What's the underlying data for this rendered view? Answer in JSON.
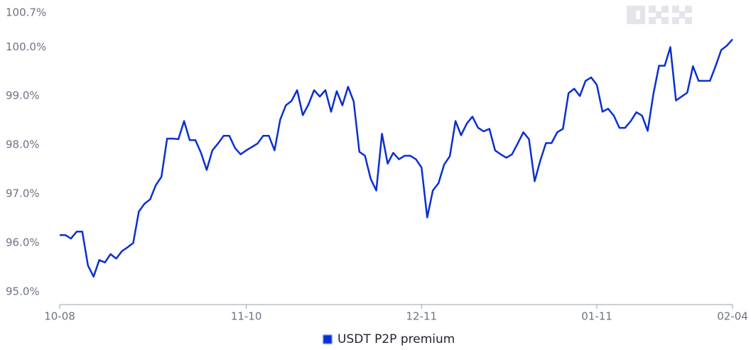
{
  "chart_data": {
    "type": "line",
    "categories": [
      "10-08",
      null,
      null,
      null,
      null,
      null,
      null,
      null,
      null,
      null,
      null,
      null,
      null,
      null,
      null,
      null,
      null,
      null,
      null,
      null,
      null,
      null,
      null,
      null,
      null,
      null,
      null,
      null,
      null,
      null,
      null,
      null,
      null,
      "11-10",
      null,
      null,
      null,
      null,
      null,
      null,
      null,
      null,
      null,
      null,
      null,
      null,
      null,
      null,
      null,
      null,
      null,
      null,
      null,
      null,
      null,
      null,
      null,
      null,
      null,
      null,
      null,
      null,
      null,
      null,
      "12-11",
      null,
      null,
      null,
      null,
      null,
      null,
      null,
      null,
      null,
      null,
      null,
      null,
      null,
      null,
      null,
      null,
      null,
      null,
      null,
      null,
      null,
      null,
      null,
      null,
      null,
      null,
      null,
      null,
      null,
      null,
      "01-11",
      null,
      null,
      null,
      null,
      null,
      null,
      null,
      null,
      null,
      null,
      null,
      null,
      null,
      null,
      null,
      null,
      null,
      null,
      null,
      null,
      null,
      null,
      null,
      "02-04"
    ],
    "series": [
      {
        "name": "USDT P2P premium",
        "color": "#0a2fd0",
        "values": [
          96.26,
          96.26,
          96.19,
          96.33,
          96.33,
          95.64,
          95.41,
          95.75,
          95.7,
          95.87,
          95.78,
          95.93,
          96.01,
          96.1,
          96.74,
          96.9,
          96.99,
          97.28,
          97.45,
          98.23,
          98.23,
          98.22,
          98.59,
          98.2,
          98.2,
          97.94,
          97.59,
          97.99,
          98.13,
          98.29,
          98.29,
          98.04,
          97.91,
          97.99,
          98.06,
          98.13,
          98.29,
          98.29,
          97.99,
          98.62,
          98.91,
          99.0,
          99.22,
          98.71,
          98.93,
          99.22,
          99.09,
          99.22,
          98.78,
          99.2,
          98.91,
          99.29,
          98.99,
          97.96,
          97.88,
          97.41,
          97.17,
          98.33,
          97.72,
          97.94,
          97.81,
          97.88,
          97.88,
          97.81,
          97.64,
          96.62,
          97.17,
          97.32,
          97.7,
          97.87,
          98.59,
          98.3,
          98.54,
          98.68,
          98.45,
          98.38,
          98.43,
          97.99,
          97.91,
          97.84,
          97.91,
          98.13,
          98.36,
          98.22,
          97.36,
          97.78,
          98.14,
          98.14,
          98.36,
          98.43,
          99.16,
          99.25,
          99.1,
          99.41,
          99.48,
          99.33,
          98.78,
          98.84,
          98.7,
          98.45,
          98.45,
          98.59,
          98.77,
          98.7,
          98.39,
          99.14,
          99.72,
          99.72,
          100.1,
          99.01,
          99.09,
          99.17,
          99.71,
          99.41,
          99.41,
          99.41,
          99.71,
          100.04,
          100.13,
          100.26
        ]
      }
    ],
    "ylim": [
      95,
      100.7
    ],
    "yticks": [
      {
        "value": 95,
        "label": "95.0%"
      },
      {
        "value": 96,
        "label": "96.0%"
      },
      {
        "value": 97,
        "label": "97.0%"
      },
      {
        "value": 98,
        "label": "98.0%"
      },
      {
        "value": 99,
        "label": "99.0%"
      },
      {
        "value": 100,
        "label": "100.0%"
      },
      {
        "value": 100.7,
        "label": "100.7%"
      }
    ],
    "grid": false,
    "legend": "bottom"
  }
}
